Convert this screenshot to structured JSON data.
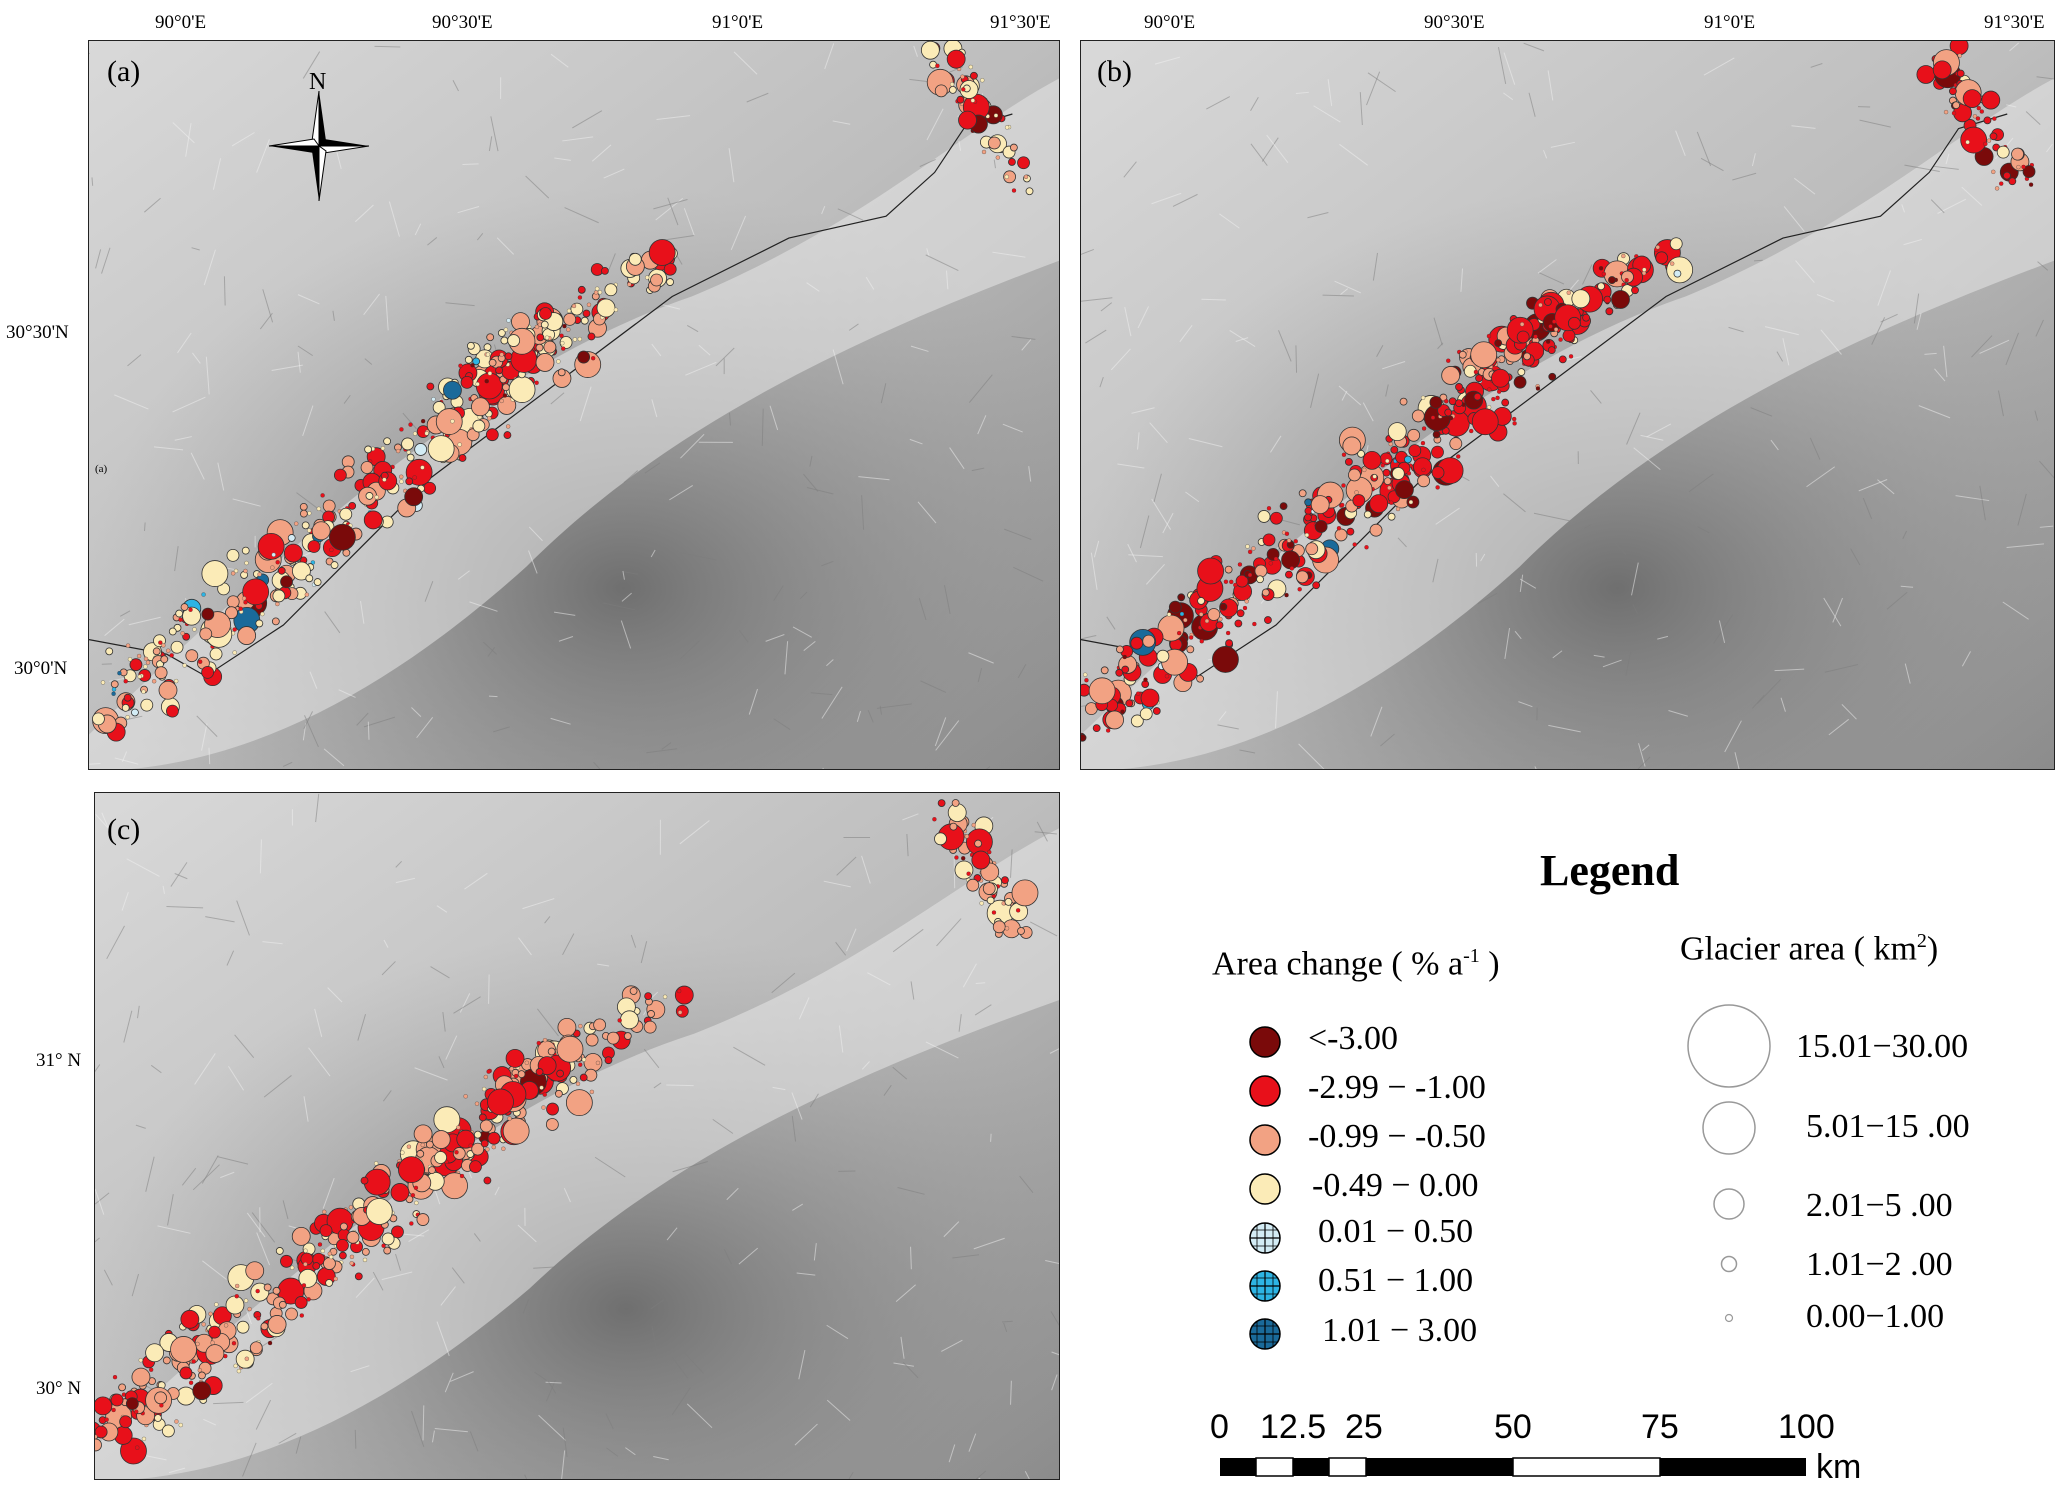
{
  "panels": [
    {
      "label": "(a)",
      "scheme": "a"
    },
    {
      "label": "(b)",
      "scheme": "b"
    },
    {
      "label": "(c)",
      "scheme": "c"
    }
  ],
  "north_label": "N",
  "small_label_a": "(a)",
  "top_ticks_a": [
    "90°0'E",
    "90°30'E",
    "91°0'E",
    "91°30'E"
  ],
  "top_ticks_b": [
    "90°0'E",
    "90°30'E",
    "91°0'E",
    "91°30'E"
  ],
  "left_ticks_a": [
    "30°30'N",
    "30°0'N"
  ],
  "left_ticks_c": [
    "31° N",
    "30° N"
  ],
  "legend": {
    "title": "Legend",
    "area_change_title": "Area change ( % a",
    "area_change_sup": "-1",
    "area_change_close": " )",
    "glacier_area_title": "Glacier area ( km",
    "glacier_area_sup": "2",
    "glacier_area_close": ")",
    "classes": [
      {
        "label": "<-3.00",
        "color": "#7a0a0a",
        "hatch": false
      },
      {
        "label": "-2.99 − -1.00",
        "color": "#e8101a",
        "hatch": false
      },
      {
        "label": "-0.99 − -0.50",
        "color": "#f2a283",
        "hatch": false
      },
      {
        "label": "-0.49 − 0.00",
        "color": "#fbebb7",
        "hatch": false
      },
      {
        "label": "0.01 − 0.50",
        "color": "#d3ecf5",
        "hatch": true
      },
      {
        "label": "0.51 − 1.00",
        "color": "#2db4e4",
        "hatch": true
      },
      {
        "label": "1.01 − 3.00",
        "color": "#1a6a9a",
        "hatch": true
      }
    ],
    "sizes": [
      "15.01−30.00",
      "5.01−15 .00",
      "2.01−5 .00",
      "1.01−2 .00",
      "0.00−1.00"
    ]
  },
  "scale_bar": {
    "labels": [
      "0",
      "12.5",
      "25",
      "50",
      "75",
      "100"
    ],
    "unit": "km"
  }
}
